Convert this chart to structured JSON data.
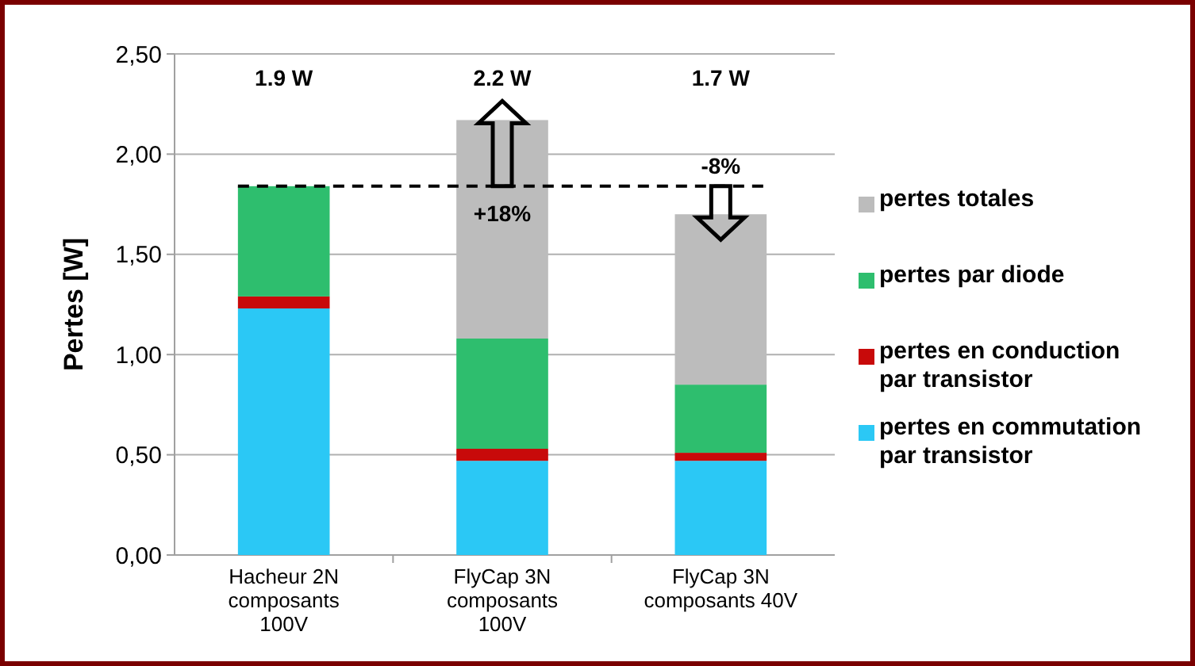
{
  "chart_data": {
    "type": "bar",
    "stacked": true,
    "ylabel": "Pertes [W]",
    "categories": [
      "Hacheur 2N\ncomposants\n100V",
      "FlyCap 3N\ncomposants\n100V",
      "FlyCap 3N\ncomposants 40V"
    ],
    "series": [
      {
        "name": "pertes en commutation\npar transistor",
        "color": "#2bc8f5",
        "values": [
          1.23,
          0.47,
          0.47
        ]
      },
      {
        "name": "pertes en conduction\npar transistor",
        "color": "#c80a0a",
        "values": [
          0.06,
          0.06,
          0.04
        ]
      },
      {
        "name": "pertes par diode",
        "color": "#2ebe6e",
        "values": [
          0.55,
          0.55,
          0.34
        ]
      },
      {
        "name": "pertes totales",
        "color": "#bcbcbc",
        "values": [
          0,
          1.09,
          0.85
        ]
      }
    ],
    "ylim": [
      0,
      2.5
    ],
    "yticks": [
      {
        "value": 0,
        "label": "0,00"
      },
      {
        "value": 0.5,
        "label": "0,50"
      },
      {
        "value": 1,
        "label": "1,00"
      },
      {
        "value": 1.5,
        "label": "1,50"
      },
      {
        "value": 2,
        "label": "2,00"
      },
      {
        "value": 2.5,
        "label": "2,50"
      }
    ],
    "grid": "y",
    "legend": "right",
    "ref_lines": [
      {
        "axis": "y",
        "value": 1.84,
        "color": "#000000",
        "line_style": "dashed"
      }
    ],
    "annotations": [
      "1.9 W",
      "2.2 W",
      "1.7 W",
      "+18%",
      "-8%"
    ]
  }
}
